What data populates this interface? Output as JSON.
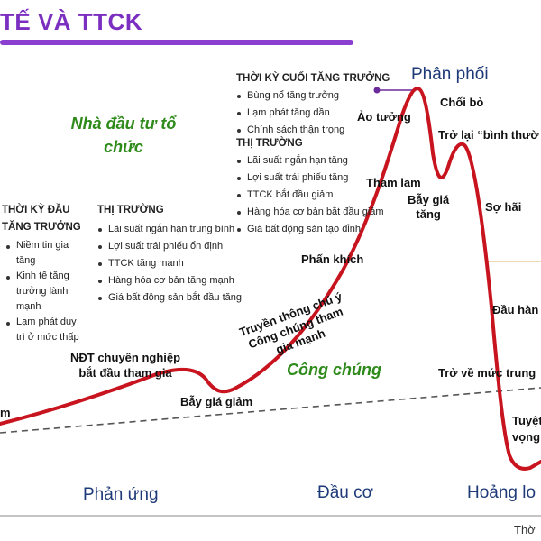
{
  "title": "TẾ VÀ TTCK",
  "colors": {
    "title": "#7a2fc0",
    "curve": "#c8141e",
    "green": "#2e8b1a",
    "phase": "#1e3a78",
    "ref_line": "#555555"
  },
  "institutional_investor": "Nhà đầu tư tổ chức",
  "public": "Công chúng",
  "early_growth": {
    "header": [
      "THỜI KỲ ĐẦU",
      "TĂNG TRƯỞNG"
    ],
    "items": [
      [
        "Niềm tin gia",
        "tăng"
      ],
      [
        "Kinh tế tăng",
        "trưởng lành",
        "mạnh"
      ],
      [
        "Lạm phát duy",
        "trì ở mức thấp"
      ]
    ]
  },
  "market_mid": {
    "header": "THỊ TRƯỜNG",
    "items": [
      "Lãi suất ngắn hạn trung bình",
      "Lợi suất trái phiếu ổn định",
      "TTCK tăng mạnh",
      "Hàng hóa cơ bản tăng mạnh",
      "Giá bất động sản bắt đầu tăng"
    ]
  },
  "late_growth": {
    "header": "THỜI KỲ CUỐI TĂNG TRƯỞNG",
    "items": [
      "Bùng nổ tăng trưởng",
      "Lạm phát tăng dần",
      "Chính sách thận trọng"
    ]
  },
  "market_late": {
    "header": "THỊ TRƯỜNG",
    "items": [
      "Lãi suất ngắn hạn tăng",
      "Lợi suất trái phiếu tăng",
      "TTCK bắt đầu giảm",
      "Hàng hóa cơ bản bắt đầu giảm",
      "Giá bất động sản tạo đỉnh"
    ]
  },
  "curve_labels": {
    "left_edge": "m",
    "pro_investors": [
      "NĐT chuyên nghiệp",
      "bắt đầu tham gia"
    ],
    "bull_trap": "Bẫy giá giảm",
    "media": [
      "Truyền thông chú ý",
      "Công chúng tham",
      "gia mạnh"
    ],
    "excitement": "Phấn khích",
    "greed": "Tham lam",
    "bear_trap": [
      "Bẫy giá",
      "tăng"
    ],
    "illusion": "Ảo tưởng",
    "distribution": "Phân phối",
    "denial": "Chối bỏ",
    "return_normal": "Trở lại “bình thườ",
    "fear": "Sợ hãi",
    "capitulation": "Đầu hàn",
    "return_average": "Trở về mức trung",
    "despair": [
      "Tuyệt",
      "vọng"
    ]
  },
  "phases": {
    "reaction": "Phản ứng",
    "speculation": "Đầu cơ",
    "panic": "Hoảng lo"
  },
  "time_axis": "Thờ"
}
